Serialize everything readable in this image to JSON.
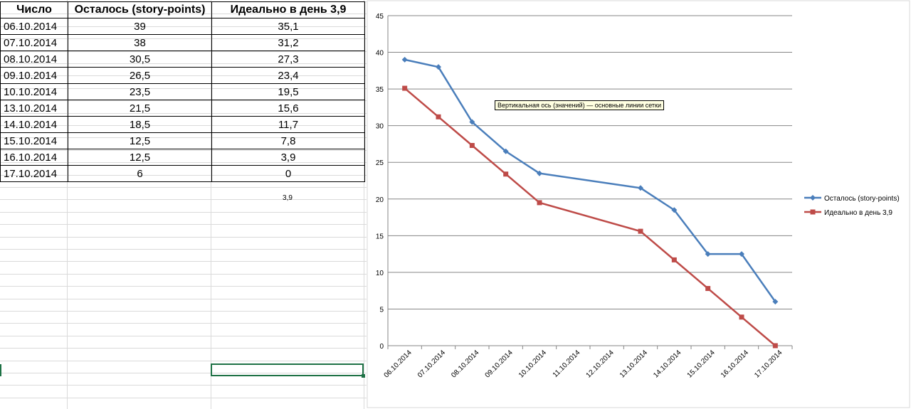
{
  "table": {
    "headers": [
      "Число",
      "Осталось (story-points)",
      "Идеально в день 3,9"
    ],
    "rows": [
      [
        "06.10.2014",
        "39",
        "35,1"
      ],
      [
        "07.10.2014",
        "38",
        "31,2"
      ],
      [
        "08.10.2014",
        "30,5",
        "27,3"
      ],
      [
        "09.10.2014",
        "26,5",
        "23,4"
      ],
      [
        "10.10.2014",
        "23,5",
        "19,5"
      ],
      [
        "13.10.2014",
        "21,5",
        "15,6"
      ],
      [
        "14.10.2014",
        "18,5",
        "11,7"
      ],
      [
        "15.10.2014",
        "12,5",
        "7,8"
      ],
      [
        "16.10.2014",
        "12,5",
        "3,9"
      ],
      [
        "17.10.2014",
        "6",
        "0"
      ]
    ],
    "below_value": "3,9"
  },
  "tooltip": "Вертикальная ось (значений)   — основные линии сетки",
  "chart_data": {
    "type": "line",
    "title": "",
    "xlabel": "",
    "ylabel": "",
    "ylim": [
      0,
      45
    ],
    "yticks": [
      0,
      5,
      10,
      15,
      20,
      25,
      30,
      35,
      40,
      45
    ],
    "grid": "horizontal",
    "legend": "right",
    "categories": [
      "06.10.2014",
      "07.10.2014",
      "08.10.2014",
      "09.10.2014",
      "10.10.2014",
      "11.10.2014",
      "12.10.2014",
      "13.10.2014",
      "14.10.2014",
      "15.10.2014",
      "16.10.2014",
      "17.10.2014"
    ],
    "series": [
      {
        "name": "Осталось (story-points)",
        "color": "#4a7ebb",
        "marker": "diamond",
        "points": [
          [
            "06.10.2014",
            39
          ],
          [
            "07.10.2014",
            38
          ],
          [
            "08.10.2014",
            30.5
          ],
          [
            "09.10.2014",
            26.5
          ],
          [
            "10.10.2014",
            23.5
          ],
          [
            "13.10.2014",
            21.5
          ],
          [
            "14.10.2014",
            18.5
          ],
          [
            "15.10.2014",
            12.5
          ],
          [
            "16.10.2014",
            12.5
          ],
          [
            "17.10.2014",
            6
          ]
        ]
      },
      {
        "name": "Идеально в день 3,9",
        "color": "#be4b48",
        "marker": "square",
        "points": [
          [
            "06.10.2014",
            35.1
          ],
          [
            "07.10.2014",
            31.2
          ],
          [
            "08.10.2014",
            27.3
          ],
          [
            "09.10.2014",
            23.4
          ],
          [
            "10.10.2014",
            19.5
          ],
          [
            "13.10.2014",
            15.6
          ],
          [
            "14.10.2014",
            11.7
          ],
          [
            "15.10.2014",
            7.8
          ],
          [
            "16.10.2014",
            3.9
          ],
          [
            "17.10.2014",
            0
          ]
        ]
      }
    ]
  }
}
